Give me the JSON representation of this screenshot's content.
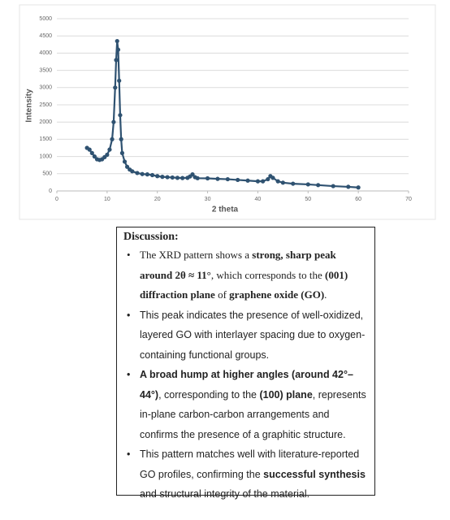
{
  "chart_data": {
    "type": "line",
    "markers": true,
    "color": "#2f5271",
    "x_label": "2 theta",
    "y_label": "Intensity",
    "x": [
      6,
      6.5,
      7,
      7.5,
      8,
      8.5,
      9,
      9.5,
      10,
      10.5,
      11,
      11.3,
      11.6,
      11.8,
      12,
      12.2,
      12.4,
      12.6,
      12.8,
      13,
      13.5,
      14,
      14.5,
      15,
      16,
      17,
      18,
      19,
      20,
      21,
      22,
      23,
      24,
      25,
      26,
      26.5,
      27,
      27.5,
      28,
      30,
      32,
      34,
      36,
      38,
      40,
      41,
      42,
      42.5,
      43,
      44,
      45,
      47,
      50,
      52,
      55,
      58,
      60
    ],
    "values": [
      1250,
      1200,
      1100,
      1000,
      920,
      900,
      920,
      980,
      1050,
      1200,
      1500,
      2000,
      3000,
      3800,
      4350,
      4100,
      3200,
      2200,
      1500,
      1100,
      850,
      700,
      620,
      570,
      520,
      490,
      480,
      460,
      430,
      410,
      400,
      390,
      380,
      375,
      380,
      420,
      480,
      400,
      370,
      365,
      350,
      340,
      320,
      300,
      280,
      280,
      340,
      430,
      380,
      280,
      240,
      210,
      190,
      170,
      140,
      120,
      100
    ],
    "xlim": [
      0,
      70
    ],
    "xticks": [
      0,
      10,
      20,
      30,
      40,
      50,
      60,
      70
    ],
    "ylim": [
      0,
      5000
    ],
    "yticks": [
      0,
      500,
      1000,
      1500,
      2000,
      2500,
      3000,
      3500,
      4000,
      4500,
      5000
    ],
    "grid": true
  },
  "discussion": {
    "title": "Discussion:",
    "bullets": [
      {
        "runs": [
          {
            "text": "The XRD pattern shows a "
          },
          {
            "text": "strong, sharp peak around 2θ ≈ 11°",
            "bold": true
          },
          {
            "text": ", which corresponds to the "
          },
          {
            "text": "(001) diffraction plane",
            "bold": true
          },
          {
            "text": " of "
          },
          {
            "text": "graphene oxide (GO)",
            "bold": true
          },
          {
            "text": "."
          }
        ]
      },
      {
        "runs": [
          {
            "text": "This peak indicates the presence of well-oxidized, layered GO with interlayer spacing due to oxygen-containing functional groups."
          }
        ]
      },
      {
        "runs": [
          {
            "text": "A broad hump at higher angles (around 42°–44°)",
            "bold": true
          },
          {
            "text": ", corresponding to the "
          },
          {
            "text": "(100) plane",
            "bold": true
          },
          {
            "text": ", represents in-plane carbon-carbon arrangements and confirms the presence of a graphitic structure."
          }
        ]
      },
      {
        "runs": [
          {
            "text": "This pattern matches well with literature-reported GO profiles, confirming the "
          },
          {
            "text": "successful synthesis",
            "bold": true
          },
          {
            "text": " and structural integrity of the material."
          }
        ]
      }
    ]
  }
}
